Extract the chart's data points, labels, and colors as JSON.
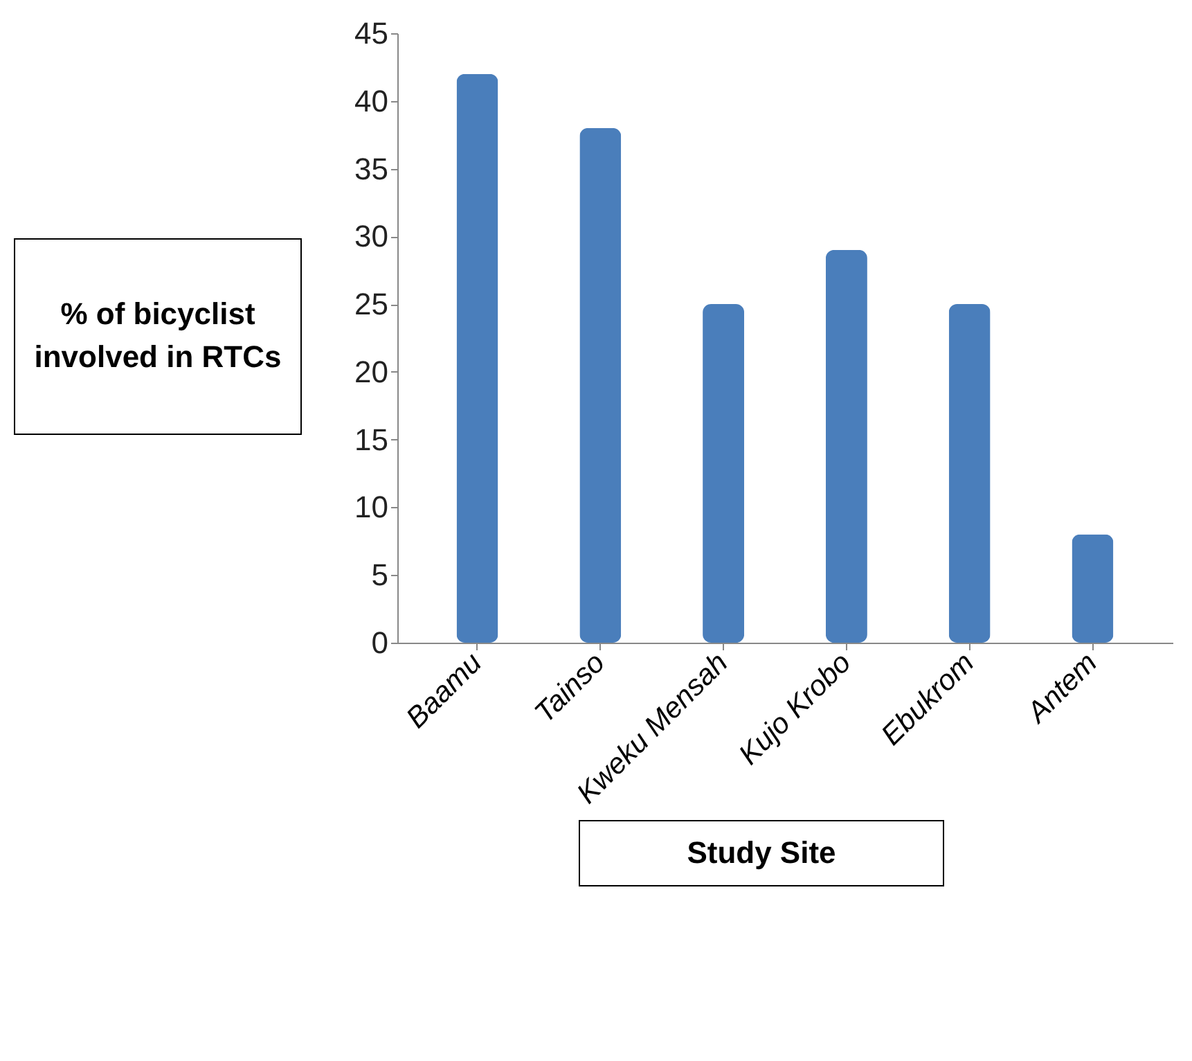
{
  "chart_data": {
    "type": "bar",
    "xlabel": "Study Site",
    "ylabel": "% of bicyclist involved in RTCs",
    "categories": [
      "Baamu",
      "Tainso",
      "Kweku Mensah",
      "Kujo Krobo",
      "Ebukrom",
      "Antem"
    ],
    "values": [
      42,
      38,
      25,
      29,
      25,
      8
    ],
    "color": "#4a7ebb",
    "ylim": [
      0,
      45
    ],
    "yticks": [
      0,
      5,
      10,
      15,
      20,
      25,
      30,
      35,
      40,
      45
    ],
    "grid": false
  }
}
